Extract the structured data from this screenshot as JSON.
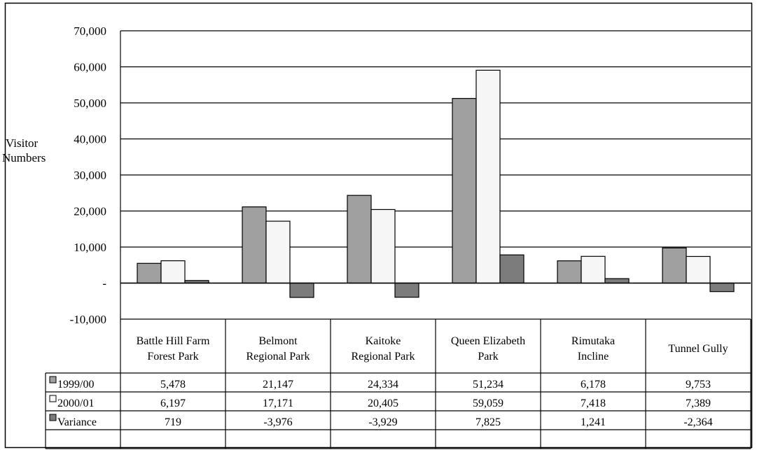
{
  "chart_data": {
    "type": "bar",
    "ylabel_lines": [
      "Visitor",
      "Numbers"
    ],
    "ylim": [
      -10000,
      70000
    ],
    "yticks": [
      70000,
      60000,
      50000,
      40000,
      30000,
      20000,
      10000,
      0,
      -10000
    ],
    "ytick_labels": [
      "70,000",
      "60,000",
      "50,000",
      "40,000",
      "30,000",
      "20,000",
      "10,000",
      "-",
      "-10,000"
    ],
    "grid": true,
    "categories": [
      [
        "Battle Hill Farm",
        "Forest Park"
      ],
      [
        "Belmont",
        "Regional Park"
      ],
      [
        "Kaitoke",
        "Regional Park"
      ],
      [
        "Queen Elizabeth",
        "Park"
      ],
      [
        "Rimutaka",
        "Incline"
      ],
      [
        "Tunnel Gully"
      ]
    ],
    "series": [
      {
        "name": "1999/00",
        "color": "#a0a0a0",
        "values": [
          5478,
          21147,
          24334,
          51234,
          6178,
          9753
        ],
        "labels": [
          "5,478",
          "21,147",
          "24,334",
          "51,234",
          "6,178",
          "9,753"
        ]
      },
      {
        "name": "2000/01",
        "color": "#f6f6f6",
        "values": [
          6197,
          17171,
          20405,
          59059,
          7418,
          7389
        ],
        "labels": [
          "6,197",
          "17,171",
          "20,405",
          "59,059",
          "7,418",
          "7,389"
        ]
      },
      {
        "name": "Variance",
        "color": "#7c7c7c",
        "values": [
          719,
          -3976,
          -3929,
          7825,
          1241,
          -2364
        ],
        "labels": [
          "719",
          "-3,976",
          "-3,929",
          "7,825",
          "1,241",
          "-2,364"
        ]
      }
    ],
    "legend_placement": "data-table"
  }
}
